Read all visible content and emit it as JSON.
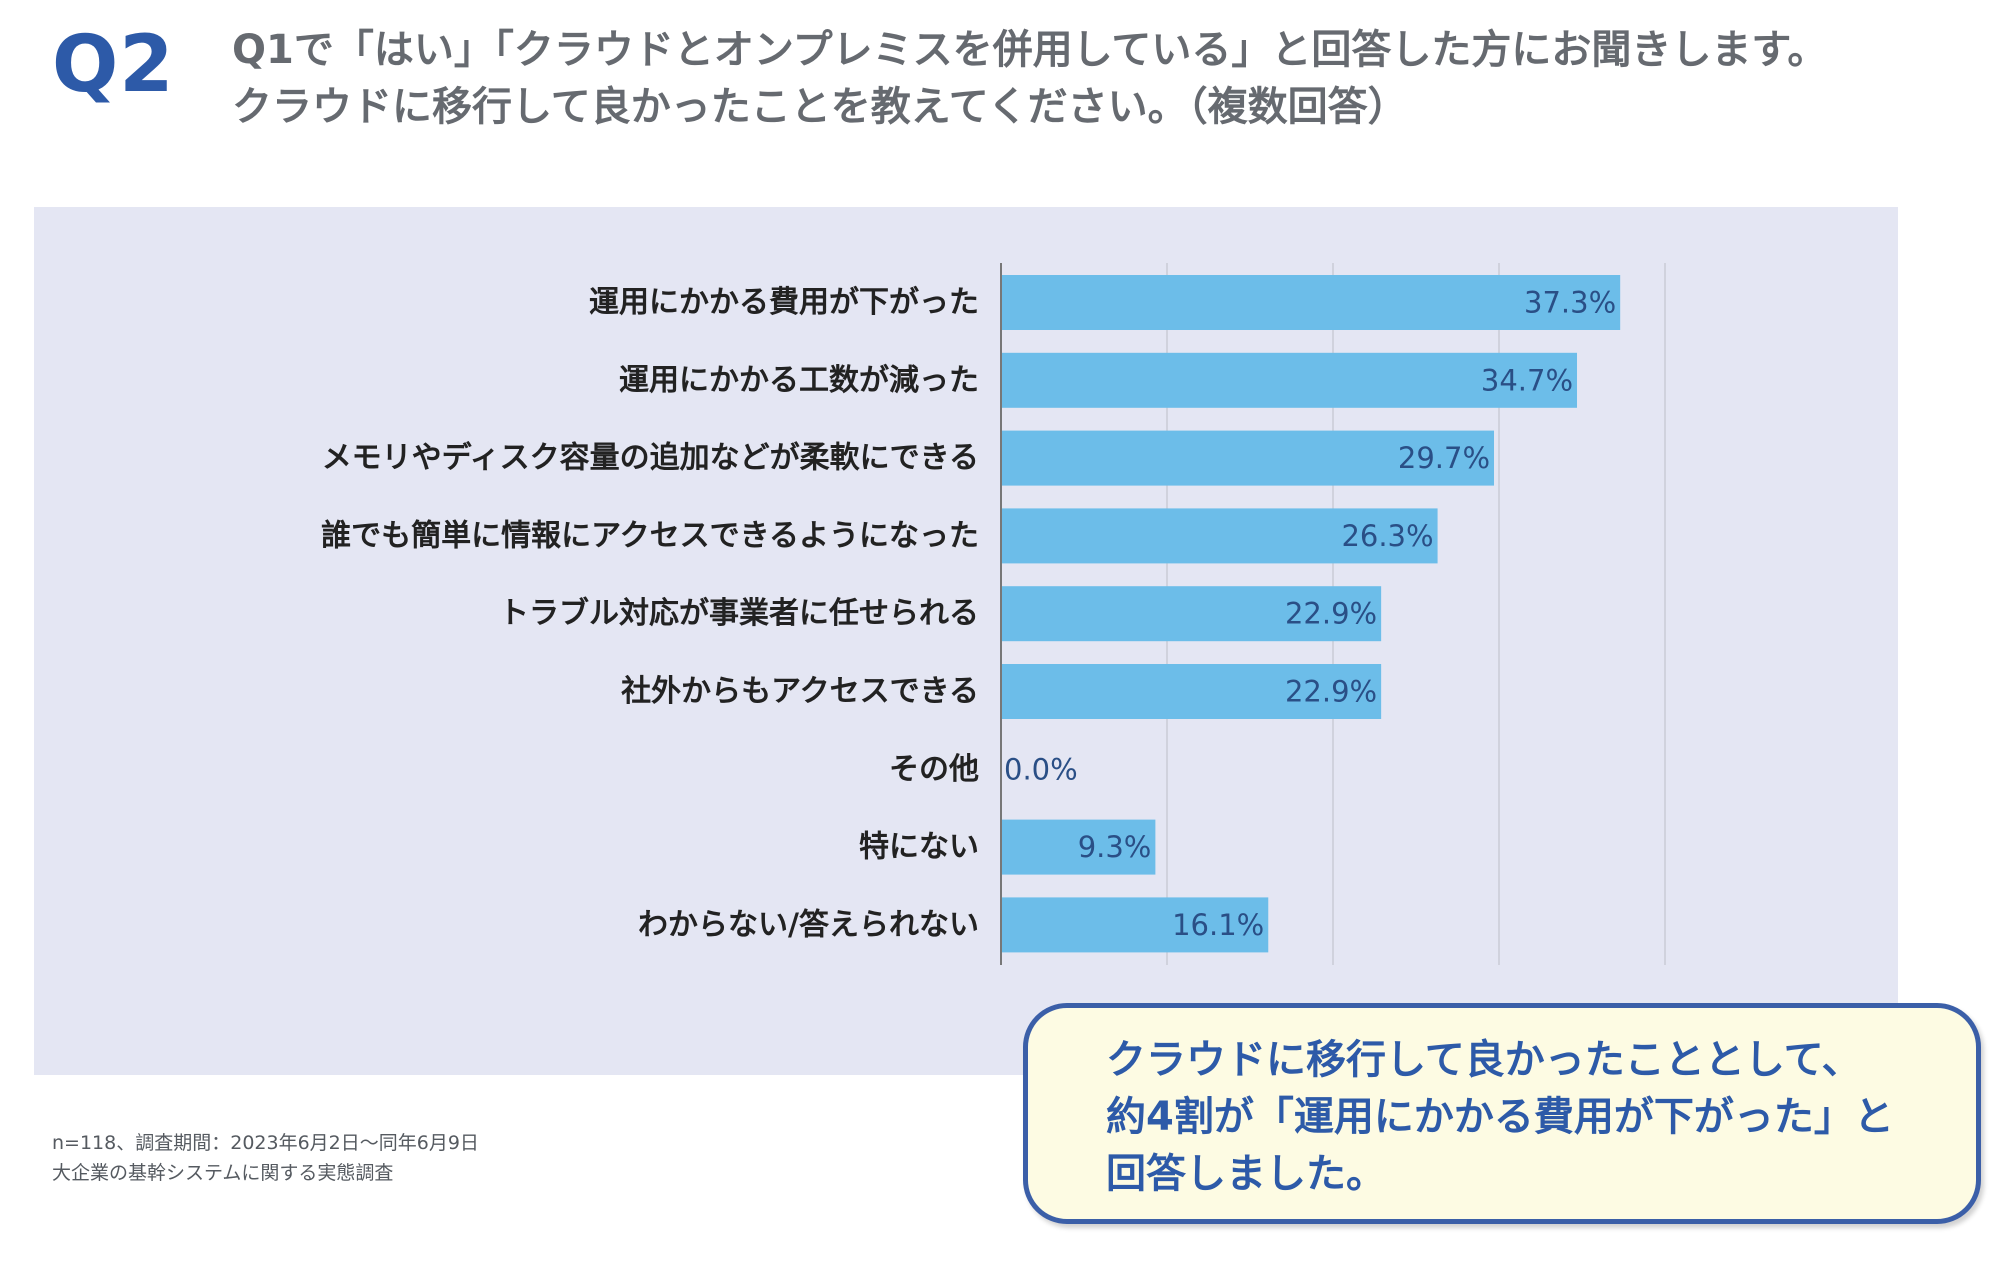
{
  "question_label": "Q2",
  "title": {
    "line1": "Q1で「はい」「クラウドとオンプレミスを併用している」と回答した方にお聞きします。",
    "line2": "クラウドに移行して良かったことを教えてください。（複数回答）"
  },
  "footnote": {
    "line1": "n=118、調査期間：2023年6月2日〜同年6月9日",
    "line2": "大企業の基幹システムに関する実態調査"
  },
  "callout": {
    "line1": "クラウドに移行して良かったこととして、",
    "line2": "約4割が「運用にかかる費用が下がった」と",
    "line3": "回答しました。"
  },
  "chart_data": {
    "type": "bar",
    "orientation": "horizontal",
    "categories": [
      "運用にかかる費用が下がった",
      "運用にかかる工数が減った",
      "メモリやディスク容量の追加などが柔軟にできる",
      "誰でも簡単に情報にアクセスできるようになった",
      "トラブル対応が事業者に任せられる",
      "社外からもアクセスできる",
      "その他",
      "特にない",
      "わからない/答えられない"
    ],
    "values": [
      37.3,
      34.7,
      29.7,
      26.3,
      22.9,
      22.9,
      0.0,
      9.3,
      16.1
    ],
    "value_labels": [
      "37.3%",
      "34.7%",
      "29.7%",
      "26.3%",
      "22.9%",
      "22.9%",
      "0.0%",
      "9.3%",
      "16.1%"
    ],
    "xlim": [
      0,
      40
    ],
    "grid": true,
    "legend": "none",
    "colors": {
      "bar": "#6cbde9",
      "value_label": "#2a4f86",
      "category_label": "#222222",
      "gridline": "#c9cbd6",
      "axis": "#777777"
    }
  }
}
